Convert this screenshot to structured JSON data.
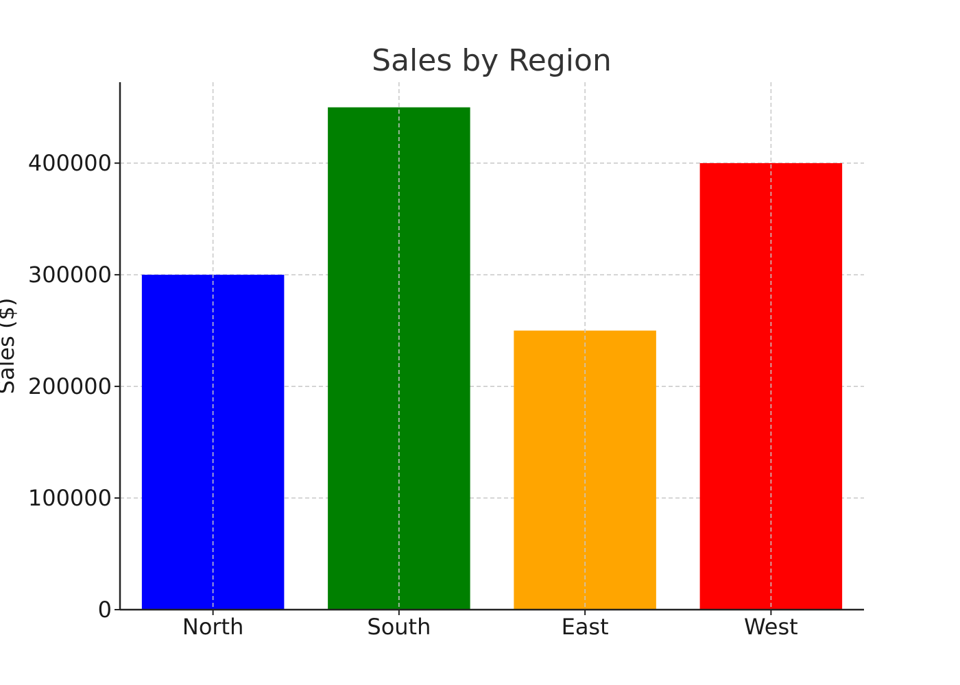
{
  "chart_data": {
    "type": "bar",
    "title": "Sales by Region",
    "xlabel": "",
    "ylabel": "Sales ($)",
    "categories": [
      "North",
      "South",
      "East",
      "West"
    ],
    "values": [
      300000,
      450000,
      250000,
      400000
    ],
    "colors": [
      "#0000ff",
      "#008000",
      "#ffa500",
      "#ff0000"
    ],
    "ylim": [
      0,
      472500
    ],
    "yticks": [
      0,
      100000,
      200000,
      300000,
      400000
    ],
    "ytick_labels": [
      "0",
      "100000",
      "200000",
      "300000",
      "400000"
    ],
    "grid": true,
    "grid_style": "dashed"
  }
}
